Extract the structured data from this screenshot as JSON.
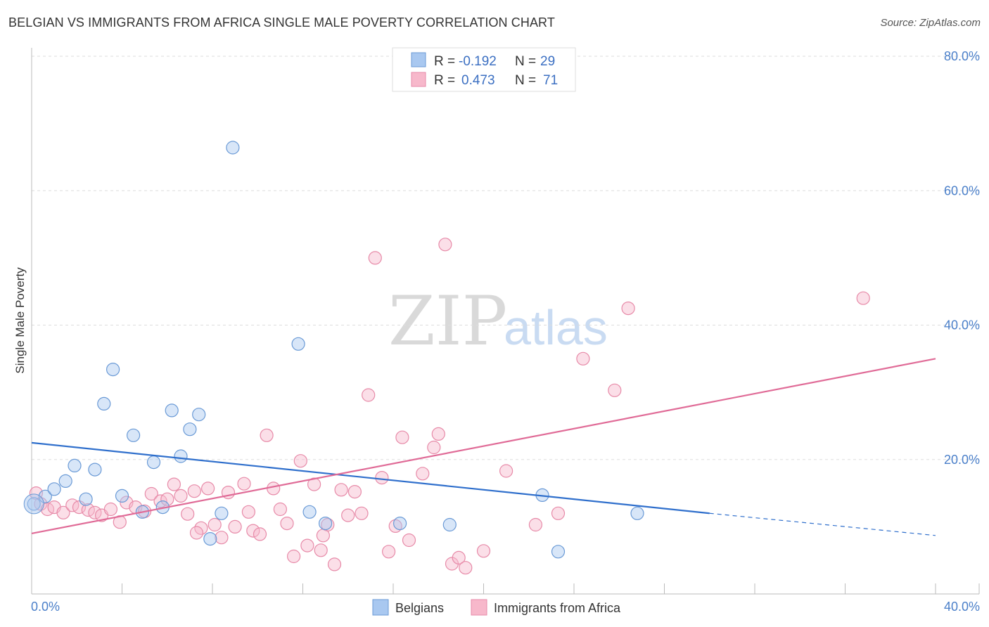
{
  "header": {
    "title": "BELGIAN VS IMMIGRANTS FROM AFRICA SINGLE MALE POVERTY CORRELATION CHART",
    "source": "Source: ZipAtlas.com"
  },
  "watermark": {
    "zip": "ZIP",
    "atlas": "atlas"
  },
  "legend_box": {
    "rows": [
      {
        "r_label": "R =",
        "r_value": "-0.192",
        "n_label": "N =",
        "n_value": "29",
        "color": "#a9c8f0"
      },
      {
        "r_label": "R =",
        "r_value": "0.473",
        "n_label": "N =",
        "n_value": "71",
        "color": "#f7b8cb"
      }
    ]
  },
  "chart_data": {
    "type": "scatter",
    "title": "BELGIAN VS IMMIGRANTS FROM AFRICA SINGLE MALE POVERTY CORRELATION CHART",
    "xlabel": "",
    "ylabel": "Single Male Poverty",
    "xlim": [
      0,
      40
    ],
    "ylim": [
      0,
      80
    ],
    "x_tick_labels": [
      "0.0%",
      "40.0%"
    ],
    "y_ticks": [
      20,
      40,
      60,
      80
    ],
    "y_tick_labels": [
      "20.0%",
      "40.0%",
      "60.0%",
      "80.0%"
    ],
    "grid": true,
    "legend_position": "bottom",
    "series": [
      {
        "name": "Belgians",
        "color": "#a9c8f0",
        "stroke": "#6a9ad6",
        "trend_color": "#2f6fcc",
        "trend": {
          "x0": 0,
          "y0": 22.5,
          "x1": 30,
          "y1": 12.0,
          "dashed_to_x": 40,
          "dashed_to_y": 8.7
        },
        "points": [
          [
            0.1,
            13.4
          ],
          [
            0.6,
            14.5
          ],
          [
            1.0,
            15.6
          ],
          [
            1.5,
            16.8
          ],
          [
            1.9,
            19.1
          ],
          [
            2.4,
            14.1
          ],
          [
            2.8,
            18.5
          ],
          [
            3.2,
            28.3
          ],
          [
            3.6,
            33.4
          ],
          [
            4.0,
            14.6
          ],
          [
            4.5,
            23.6
          ],
          [
            4.9,
            12.2
          ],
          [
            5.4,
            19.6
          ],
          [
            5.8,
            12.9
          ],
          [
            6.2,
            27.3
          ],
          [
            6.6,
            20.5
          ],
          [
            7.0,
            24.5
          ],
          [
            7.4,
            26.7
          ],
          [
            7.9,
            8.2
          ],
          [
            8.4,
            12.0
          ],
          [
            8.9,
            66.4
          ],
          [
            11.8,
            37.2
          ],
          [
            12.3,
            12.2
          ],
          [
            13.0,
            10.5
          ],
          [
            16.3,
            10.5
          ],
          [
            18.5,
            10.3
          ],
          [
            22.6,
            14.7
          ],
          [
            23.3,
            6.3
          ],
          [
            26.8,
            12.0
          ]
        ]
      },
      {
        "name": "Immigrants from Africa",
        "color": "#f7b8cb",
        "stroke": "#e78aa8",
        "trend_color": "#e06b97",
        "trend": {
          "x0": 0,
          "y0": 9.0,
          "x1": 40,
          "y1": 35.0
        },
        "points": [
          [
            0.2,
            15.0
          ],
          [
            0.4,
            13.4
          ],
          [
            0.7,
            12.6
          ],
          [
            1.0,
            12.9
          ],
          [
            1.4,
            12.1
          ],
          [
            1.8,
            13.2
          ],
          [
            2.1,
            12.9
          ],
          [
            2.5,
            12.5
          ],
          [
            2.8,
            12.1
          ],
          [
            3.1,
            11.7
          ],
          [
            3.5,
            12.6
          ],
          [
            3.9,
            10.7
          ],
          [
            4.2,
            13.6
          ],
          [
            4.6,
            12.9
          ],
          [
            5.0,
            12.3
          ],
          [
            5.3,
            14.9
          ],
          [
            5.7,
            13.8
          ],
          [
            6.0,
            14.1
          ],
          [
            6.3,
            16.3
          ],
          [
            6.6,
            14.6
          ],
          [
            6.9,
            11.9
          ],
          [
            7.2,
            15.3
          ],
          [
            7.5,
            9.8
          ],
          [
            7.8,
            15.7
          ],
          [
            8.1,
            10.3
          ],
          [
            8.4,
            8.4
          ],
          [
            8.7,
            15.1
          ],
          [
            9.0,
            10.0
          ],
          [
            9.4,
            16.4
          ],
          [
            9.8,
            9.4
          ],
          [
            10.1,
            8.9
          ],
          [
            10.4,
            23.6
          ],
          [
            10.7,
            15.7
          ],
          [
            11.0,
            12.6
          ],
          [
            11.3,
            10.5
          ],
          [
            11.6,
            5.6
          ],
          [
            11.9,
            19.8
          ],
          [
            12.2,
            7.2
          ],
          [
            12.5,
            16.3
          ],
          [
            12.8,
            6.5
          ],
          [
            13.1,
            10.3
          ],
          [
            13.4,
            4.4
          ],
          [
            13.7,
            15.5
          ],
          [
            14.0,
            11.7
          ],
          [
            14.3,
            15.2
          ],
          [
            14.6,
            12.0
          ],
          [
            14.9,
            29.6
          ],
          [
            15.2,
            50.0
          ],
          [
            15.5,
            17.3
          ],
          [
            15.8,
            6.3
          ],
          [
            16.1,
            10.1
          ],
          [
            16.4,
            23.3
          ],
          [
            17.3,
            17.9
          ],
          [
            17.8,
            21.8
          ],
          [
            18.0,
            23.8
          ],
          [
            18.3,
            52.0
          ],
          [
            18.6,
            4.5
          ],
          [
            18.9,
            5.4
          ],
          [
            19.2,
            3.9
          ],
          [
            20.0,
            6.4
          ],
          [
            21.0,
            18.3
          ],
          [
            22.3,
            10.3
          ],
          [
            23.3,
            12.0
          ],
          [
            24.4,
            35.0
          ],
          [
            25.8,
            30.3
          ],
          [
            26.4,
            42.5
          ],
          [
            36.8,
            44.0
          ],
          [
            16.7,
            8.0
          ],
          [
            12.9,
            8.7
          ],
          [
            9.6,
            12.2
          ],
          [
            7.3,
            9.1
          ]
        ]
      }
    ]
  }
}
